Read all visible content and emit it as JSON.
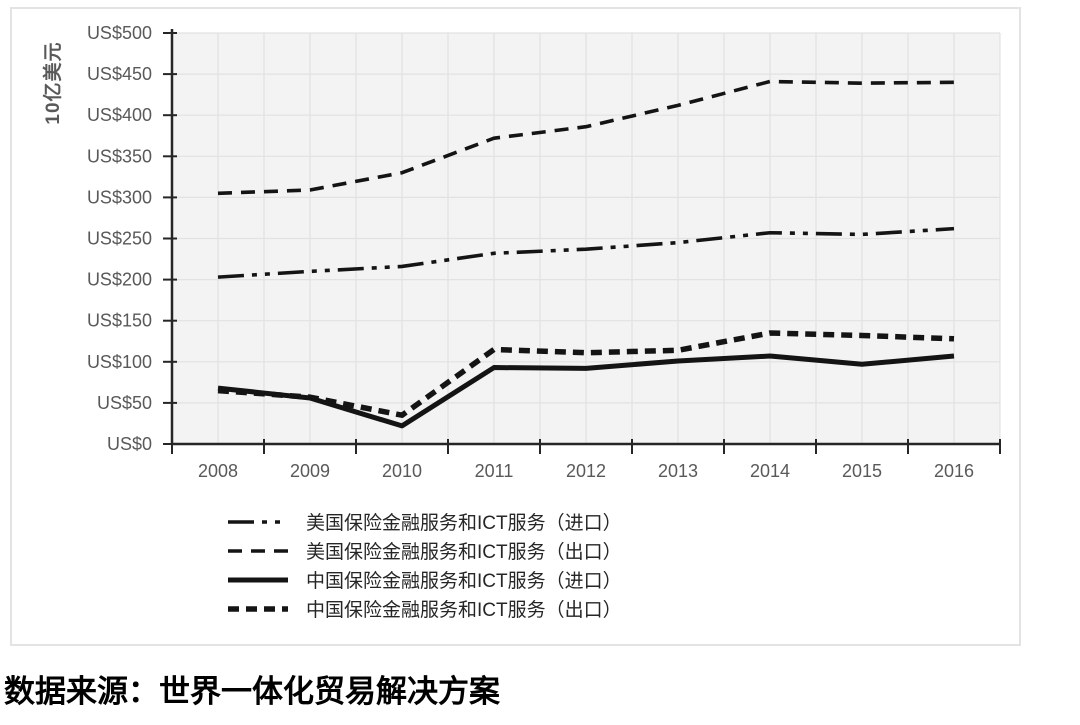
{
  "chart_data": {
    "type": "line",
    "title": "",
    "xlabel": "",
    "ylabel": "10亿美元",
    "ylim": [
      0,
      500
    ],
    "grid": true,
    "legend_position": "bottom-left",
    "categories": [
      "2008",
      "2009",
      "2010",
      "2011",
      "2012",
      "2013",
      "2014",
      "2015",
      "2016"
    ],
    "y_ticks": [
      {
        "value": 0,
        "label": "US$0"
      },
      {
        "value": 50,
        "label": "US$50"
      },
      {
        "value": 100,
        "label": "US$100"
      },
      {
        "value": 150,
        "label": "US$150"
      },
      {
        "value": 200,
        "label": "US$200"
      },
      {
        "value": 250,
        "label": "US$250"
      },
      {
        "value": 300,
        "label": "US$300"
      },
      {
        "value": 350,
        "label": "US$350"
      },
      {
        "value": 400,
        "label": "US$400"
      },
      {
        "value": 450,
        "label": "US$450"
      },
      {
        "value": 500,
        "label": "US$500"
      }
    ],
    "line_color": "#141414",
    "series": [
      {
        "name": "美国保险金融服务和ICT服务（进口）",
        "style": "dash-dot-dot",
        "values": [
          203,
          210,
          216,
          232,
          237,
          245,
          257,
          255,
          262
        ]
      },
      {
        "name": "美国保险金融服务和ICT服务（出口）",
        "style": "dashed",
        "values": [
          305,
          309,
          330,
          372,
          386,
          412,
          441,
          439,
          440
        ]
      },
      {
        "name": "中国保险金融服务和ICT服务（进口）",
        "style": "solid",
        "values": [
          68,
          56,
          22,
          93,
          92,
          101,
          107,
          97,
          107
        ]
      },
      {
        "name": "中国保险金融服务和ICT服务（出口）",
        "style": "dashed-thick",
        "values": [
          65,
          57,
          35,
          115,
          111,
          114,
          135,
          132,
          128
        ]
      }
    ]
  },
  "source_note": "数据来源：世界一体化贸易解决方案"
}
